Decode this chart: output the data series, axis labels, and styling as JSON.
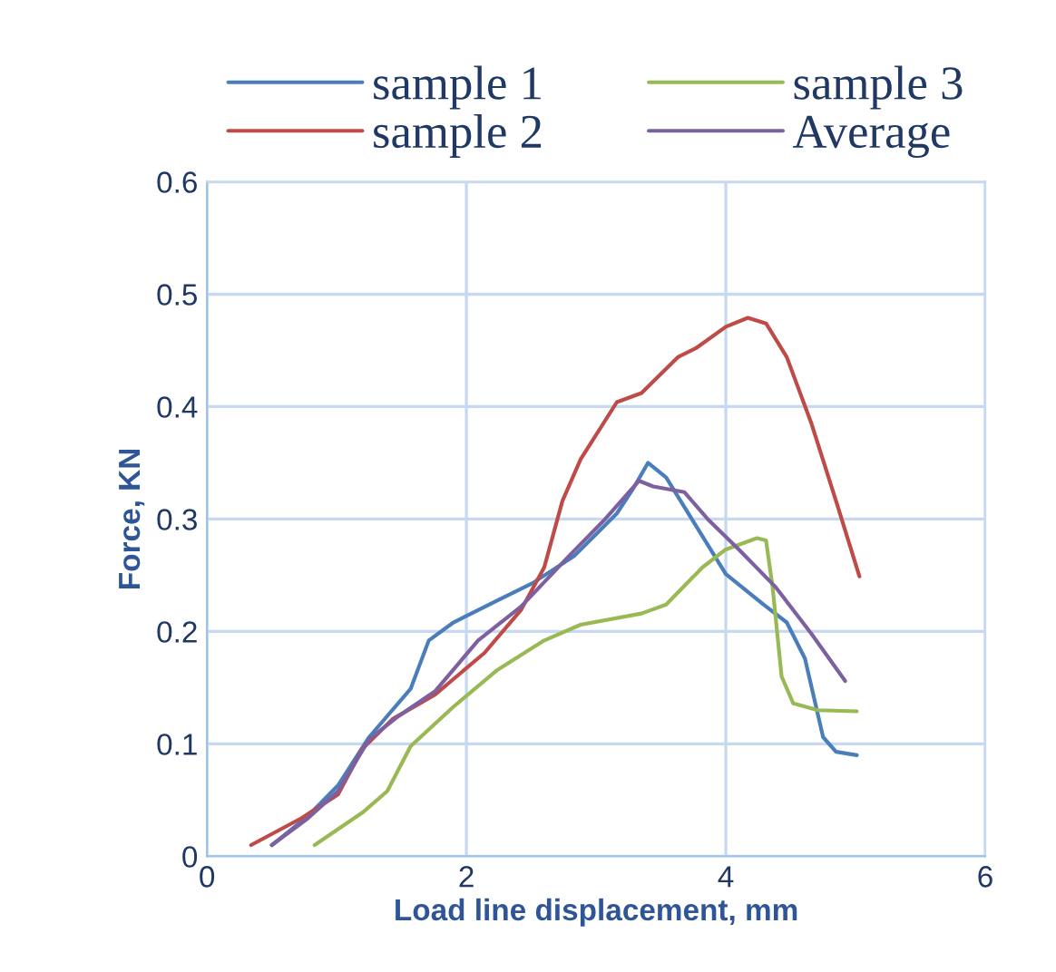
{
  "chart_data": {
    "type": "line",
    "xlabel": "Load line displacement, mm",
    "ylabel": "Force, KN",
    "xlim": [
      0,
      6
    ],
    "xticks": [
      0,
      2,
      4,
      6
    ],
    "ylim": [
      0,
      0.6
    ],
    "yticks": [
      0,
      0.1,
      0.2,
      0.3,
      0.4,
      0.5,
      0.6
    ],
    "grid": true,
    "legend": "top",
    "marker": "none",
    "line_style": "solid",
    "series": [
      {
        "name": "sample 1",
        "color": "#4a7ebb",
        "x": [
          0.5,
          0.78,
          1.01,
          1.25,
          1.57,
          1.71,
          1.9,
          2.23,
          2.51,
          2.83,
          3.16,
          3.28,
          3.4,
          3.54,
          3.77,
          4.0,
          4.29,
          4.47,
          4.61,
          4.75,
          4.85,
          5.01
        ],
        "values": [
          0.01,
          0.036,
          0.063,
          0.106,
          0.149,
          0.192,
          0.208,
          0.227,
          0.243,
          0.267,
          0.305,
          0.326,
          0.35,
          0.337,
          0.294,
          0.251,
          0.224,
          0.208,
          0.176,
          0.106,
          0.093,
          0.09
        ]
      },
      {
        "name": "sample 2",
        "color": "#be4b48",
        "x": [
          0.34,
          0.73,
          1.01,
          1.2,
          1.43,
          1.76,
          2.14,
          2.42,
          2.6,
          2.74,
          2.88,
          3.16,
          3.35,
          3.63,
          3.77,
          4.0,
          4.17,
          4.31,
          4.47,
          4.66,
          4.85,
          5.03
        ],
        "values": [
          0.01,
          0.034,
          0.055,
          0.096,
          0.122,
          0.144,
          0.181,
          0.219,
          0.257,
          0.316,
          0.353,
          0.404,
          0.412,
          0.444,
          0.452,
          0.471,
          0.479,
          0.474,
          0.444,
          0.385,
          0.316,
          0.249
        ]
      },
      {
        "name": "sample 3",
        "color": "#98b954",
        "x": [
          0.83,
          1.2,
          1.39,
          1.57,
          1.9,
          2.23,
          2.6,
          2.88,
          3.35,
          3.54,
          3.82,
          4.0,
          4.24,
          4.31,
          4.36,
          4.43,
          4.52,
          4.71,
          5.01
        ],
        "values": [
          0.01,
          0.039,
          0.058,
          0.098,
          0.133,
          0.165,
          0.192,
          0.206,
          0.216,
          0.224,
          0.257,
          0.273,
          0.283,
          0.281,
          0.24,
          0.16,
          0.136,
          0.13,
          0.129
        ]
      },
      {
        "name": "Average",
        "color": "#7d60a0",
        "x": [
          0.5,
          0.78,
          1.01,
          1.25,
          1.48,
          1.76,
          2.09,
          2.42,
          2.79,
          3.07,
          3.33,
          3.44,
          3.68,
          3.86,
          4.1,
          4.38,
          4.66,
          4.92
        ],
        "values": [
          0.01,
          0.034,
          0.058,
          0.104,
          0.125,
          0.147,
          0.192,
          0.222,
          0.267,
          0.3,
          0.334,
          0.329,
          0.324,
          0.3,
          0.273,
          0.24,
          0.198,
          0.156
        ]
      }
    ]
  }
}
